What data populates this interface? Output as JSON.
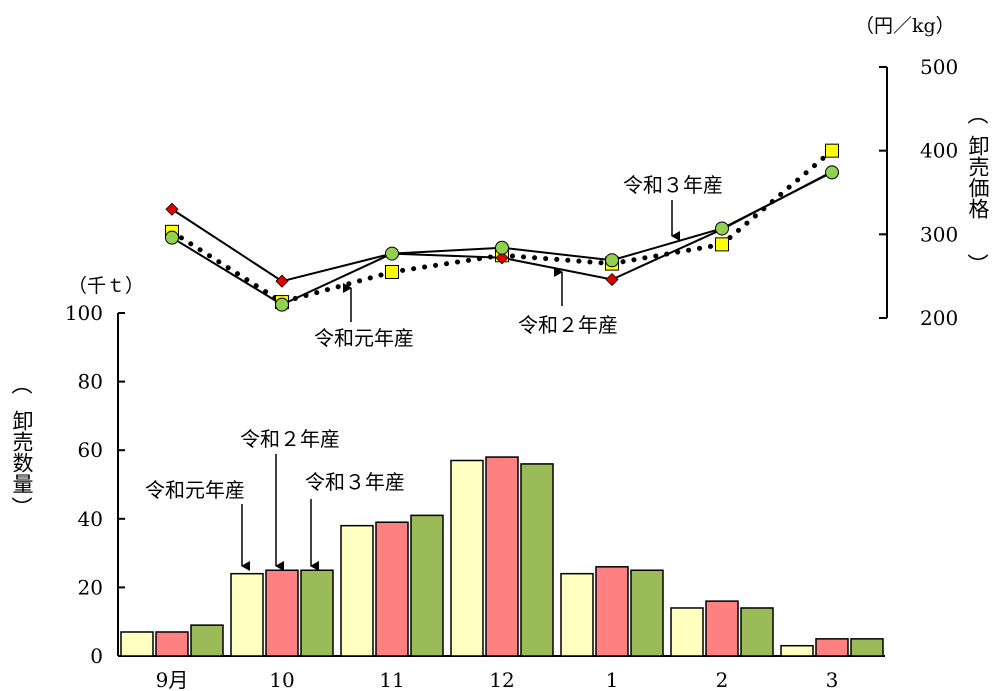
{
  "chart_data": {
    "type": "bar+line",
    "categories": [
      "9月",
      "10",
      "11",
      "12",
      "1",
      "2",
      "3"
    ],
    "bars": {
      "ylabel": "卸売数量",
      "unit": "（千ｔ）",
      "ylim": [
        0,
        100
      ],
      "yticks": [
        "0",
        "20",
        "40",
        "60",
        "80",
        "100"
      ],
      "series": [
        {
          "label": "令和元年産",
          "color": "#ffffc0",
          "values": [
            7,
            24,
            38,
            57,
            24,
            14,
            3
          ]
        },
        {
          "label": "令和２年産",
          "color": "#ff8080",
          "values": [
            7,
            25,
            39,
            58,
            26,
            16,
            5
          ]
        },
        {
          "label": "令和３年産",
          "color": "#9bbb59",
          "values": [
            9,
            25,
            41,
            56,
            25,
            14,
            5
          ]
        }
      ]
    },
    "lines": {
      "ylabel": "卸売価格",
      "unit": "（円／kg）",
      "ylim": [
        200,
        500
      ],
      "yticks": [
        "200",
        "300",
        "400",
        "500"
      ],
      "series": [
        {
          "label": "令和元年産",
          "marker": "square",
          "style": "dotted",
          "color": "#ffff00",
          "values": [
            303,
            219,
            255,
            275,
            265,
            288,
            400
          ]
        },
        {
          "label": "令和２年産",
          "marker": "diamond",
          "style": "solid",
          "color": "#e00000",
          "values": [
            330,
            244,
            277,
            272,
            246,
            306,
            375
          ]
        },
        {
          "label": "令和３年産",
          "marker": "circle",
          "style": "solid",
          "color": "#92d050",
          "values": [
            296,
            216,
            277,
            284,
            269,
            307,
            374
          ]
        }
      ]
    },
    "annotations": {
      "bar_r1": "令和元年産",
      "bar_r2": "令和２年産",
      "bar_r3": "令和３年産",
      "line_r1": "令和元年産",
      "line_r2": "令和２年産",
      "line_r3": "令和３年産"
    }
  }
}
